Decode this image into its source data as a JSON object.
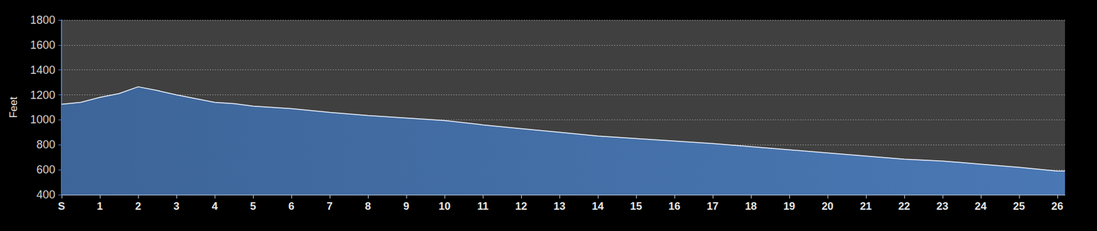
{
  "chart_data": {
    "type": "area",
    "y_label": "Feet",
    "x": [
      0,
      0.5,
      1,
      1.5,
      2,
      2.5,
      3,
      3.5,
      4,
      4.5,
      5,
      6,
      7,
      8,
      9,
      10,
      11,
      12,
      13,
      14,
      15,
      16,
      17,
      18,
      19,
      20,
      21,
      22,
      23,
      24,
      25,
      26,
      26.2
    ],
    "values": [
      1125,
      1140,
      1180,
      1210,
      1265,
      1235,
      1200,
      1170,
      1140,
      1130,
      1110,
      1090,
      1060,
      1035,
      1015,
      995,
      960,
      930,
      900,
      870,
      850,
      830,
      810,
      785,
      760,
      735,
      710,
      685,
      670,
      645,
      620,
      590,
      590
    ],
    "color": "#4a78b4",
    "xlim": [
      0,
      26.2
    ],
    "xticks": [
      {
        "value": 0,
        "label": "S"
      },
      1,
      2,
      3,
      4,
      5,
      6,
      7,
      8,
      9,
      10,
      11,
      12,
      13,
      14,
      15,
      16,
      17,
      18,
      19,
      20,
      21,
      22,
      23,
      24,
      25,
      26
    ],
    "ylim": [
      400,
      1800
    ],
    "yticks": [
      400,
      600,
      800,
      1000,
      1200,
      1400,
      1600,
      1800
    ],
    "grid": true
  }
}
